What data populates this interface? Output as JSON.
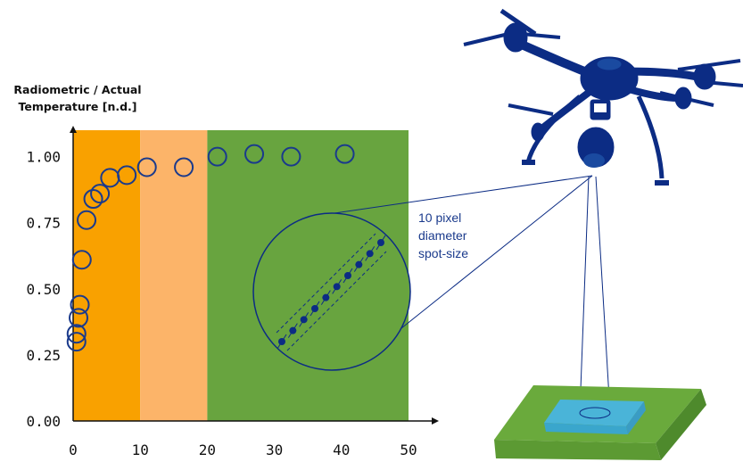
{
  "chart_data": {
    "type": "scatter",
    "ylabel": [
      "Radiometric / Actual",
      "Temperature [n.d.]"
    ],
    "xlabel": "",
    "xlim": [
      0,
      50
    ],
    "ylim": [
      0,
      1.1
    ],
    "x_ticks": [
      "0",
      "10",
      "20",
      "30",
      "40",
      "50"
    ],
    "y_ticks": [
      "0.00",
      "0.25",
      "0.50",
      "0.75",
      "1.00"
    ],
    "bands": [
      {
        "from": 0,
        "to": 10,
        "color": "#f9a100"
      },
      {
        "from": 10,
        "to": 20,
        "color": "#fcb469"
      },
      {
        "from": 20,
        "to": 50,
        "color": "#68a43f"
      }
    ],
    "points": [
      {
        "x": 0.5,
        "y": 0.3
      },
      {
        "x": 0.5,
        "y": 0.33
      },
      {
        "x": 0.8,
        "y": 0.39
      },
      {
        "x": 1.0,
        "y": 0.44
      },
      {
        "x": 1.3,
        "y": 0.61
      },
      {
        "x": 2.0,
        "y": 0.76
      },
      {
        "x": 3.0,
        "y": 0.84
      },
      {
        "x": 4.0,
        "y": 0.86
      },
      {
        "x": 5.5,
        "y": 0.92
      },
      {
        "x": 8.0,
        "y": 0.93
      },
      {
        "x": 11.0,
        "y": 0.96
      },
      {
        "x": 16.5,
        "y": 0.96
      },
      {
        "x": 21.5,
        "y": 1.0
      },
      {
        "x": 27.0,
        "y": 1.01
      },
      {
        "x": 32.5,
        "y": 1.0
      },
      {
        "x": 40.5,
        "y": 1.01
      }
    ],
    "annotation": [
      "10 pixel",
      "diameter",
      "spot-size"
    ],
    "marker_color": "#1a3a8c"
  },
  "colors": {
    "drone": "#0c2c84",
    "target_base": "#6aaa3c",
    "target_square": "#4ab4d8",
    "dots": "#0c2c84"
  },
  "icons": [
    "drone-icon"
  ]
}
